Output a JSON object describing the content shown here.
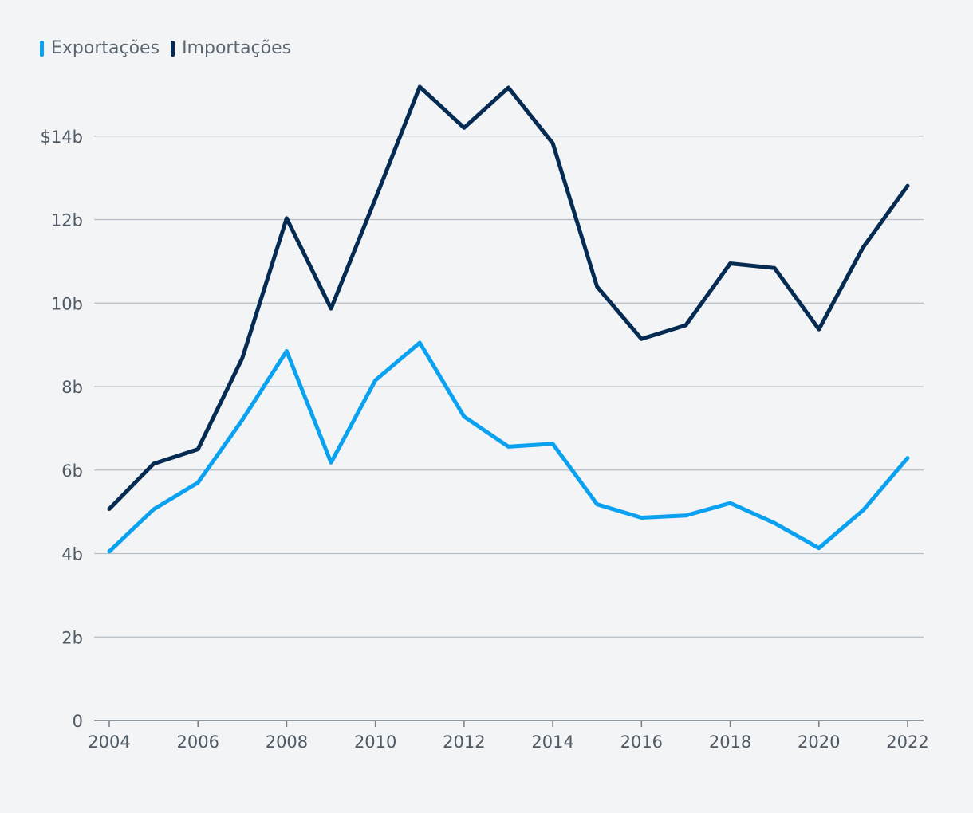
{
  "chart_data": {
    "type": "line",
    "title": "",
    "xlabel": "",
    "ylabel": "",
    "x": [
      2004,
      2005,
      2006,
      2007,
      2008,
      2009,
      2010,
      2011,
      2012,
      2013,
      2014,
      2015,
      2016,
      2017,
      2018,
      2019,
      2020,
      2021,
      2022
    ],
    "xticks": [
      "2004",
      "2006",
      "2008",
      "2010",
      "2012",
      "2014",
      "2016",
      "2018",
      "2020",
      "2022"
    ],
    "yticks": [
      {
        "value": 0,
        "label": "0"
      },
      {
        "value": 2,
        "label": "2b"
      },
      {
        "value": 4,
        "label": "4b"
      },
      {
        "value": 6,
        "label": "6b"
      },
      {
        "value": 8,
        "label": "8b"
      },
      {
        "value": 10,
        "label": "10b"
      },
      {
        "value": 12,
        "label": "12b"
      },
      {
        "value": 14,
        "label": "$14b"
      }
    ],
    "ylim": [
      0,
      16
    ],
    "xlim": [
      2004,
      2022
    ],
    "series": [
      {
        "name": "Exportações",
        "color": "#0aa1f0",
        "values": [
          4.05,
          5.06,
          5.7,
          7.2,
          8.85,
          6.18,
          8.15,
          9.05,
          7.28,
          6.56,
          6.63,
          5.18,
          4.86,
          4.91,
          5.21,
          4.73,
          4.13,
          5.04,
          6.29
        ]
      },
      {
        "name": "Importações",
        "color": "#062b52",
        "values": [
          5.07,
          6.15,
          6.5,
          8.68,
          12.03,
          9.87,
          12.5,
          15.18,
          14.2,
          15.16,
          13.83,
          10.39,
          9.14,
          9.47,
          10.95,
          10.84,
          9.37,
          11.34,
          12.81
        ]
      }
    ],
    "colors": {
      "grid": "#b7bec6",
      "axis": "#737c85",
      "tick_text": "#4f5a64",
      "background": "#f2f4f6"
    }
  }
}
